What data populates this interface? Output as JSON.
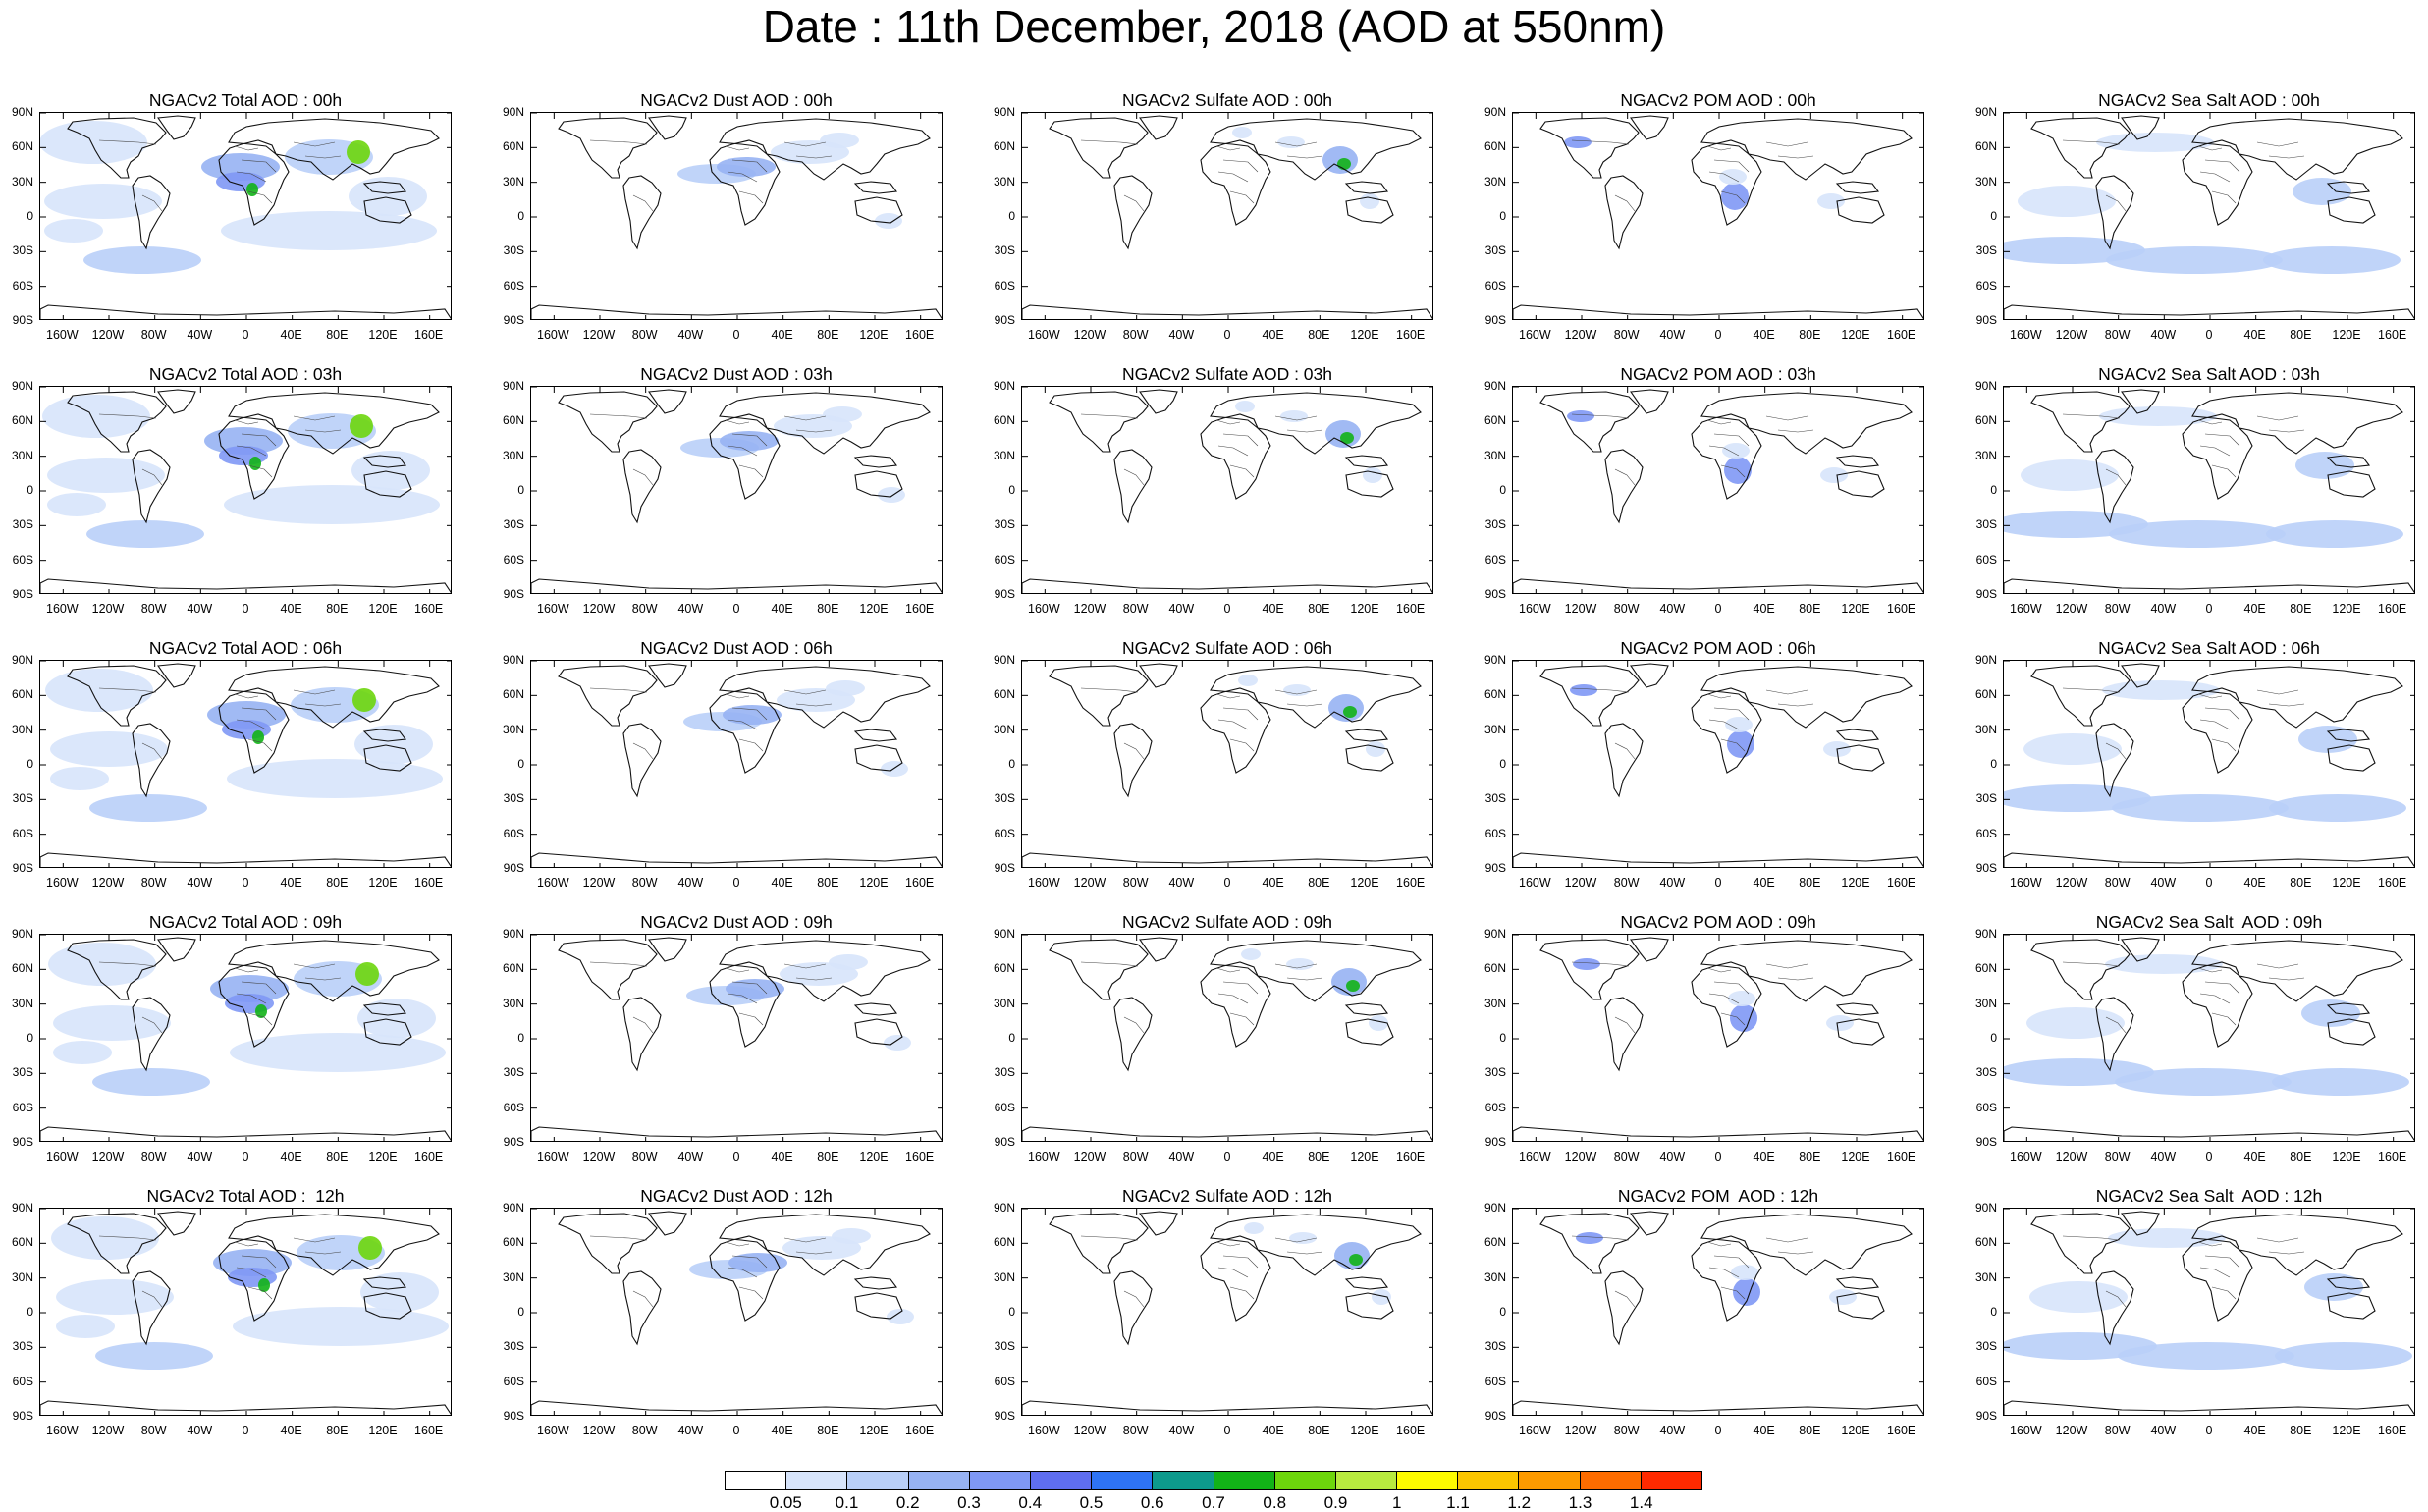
{
  "title": "Date : 11th December, 2018 (AOD at 550nm)",
  "lat_labels": [
    "90N",
    "60N",
    "30N",
    "0",
    "30S",
    "60S",
    "90S"
  ],
  "lon_labels": [
    "160W",
    "120W",
    "80W",
    "40W",
    "0",
    "40E",
    "80E",
    "120E",
    "160E"
  ],
  "panels": [
    [
      "NGACv2 Total AOD : 00h",
      "NGACv2 Dust AOD : 00h",
      "NGACv2 Sulfate AOD : 00h",
      "NGACv2 POM AOD : 00h",
      "NGACv2 Sea Salt AOD : 00h"
    ],
    [
      "NGACv2 Total AOD : 03h",
      "NGACv2 Dust AOD : 03h",
      "NGACv2 Sulfate AOD : 03h",
      "NGACv2 POM AOD : 03h",
      "NGACv2 Sea Salt AOD : 03h"
    ],
    [
      "NGACv2 Total AOD : 06h",
      "NGACv2 Dust AOD : 06h",
      "NGACv2 Sulfate AOD : 06h",
      "NGACv2 POM AOD : 06h",
      "NGACv2 Sea Salt AOD : 06h"
    ],
    [
      "NGACv2 Total AOD : 09h",
      "NGACv2 Dust AOD : 09h",
      "NGACv2 Sulfate AOD : 09h",
      "NGACv2 POM AOD : 09h",
      "NGACv2 Sea Salt  AOD : 09h"
    ],
    [
      "NGACv2 Total AOD :  12h",
      "NGACv2 Dust AOD : 12h",
      "NGACv2 Sulfate AOD : 12h",
      "NGACv2 POM  AOD : 12h",
      "NGACv2 Sea Salt  AOD : 12h"
    ]
  ],
  "colorbar": {
    "labels": [
      "0.05",
      "0.1",
      "0.2",
      "0.3",
      "0.4",
      "0.5",
      "0.6",
      "0.7",
      "0.8",
      "0.9",
      "1",
      "1.1",
      "1.2",
      "1.3",
      "1.4"
    ],
    "colors": [
      "#ffffff",
      "#d7e4fb",
      "#b9cff8",
      "#97b2f3",
      "#7f98f5",
      "#5f6ef0",
      "#2e73f5",
      "#0d9a8c",
      "#12b317",
      "#6dd60c",
      "#b8ea3f",
      "#fdfb00",
      "#fbc500",
      "#fc9a00",
      "#fd6c00",
      "#fe2a00"
    ]
  }
}
